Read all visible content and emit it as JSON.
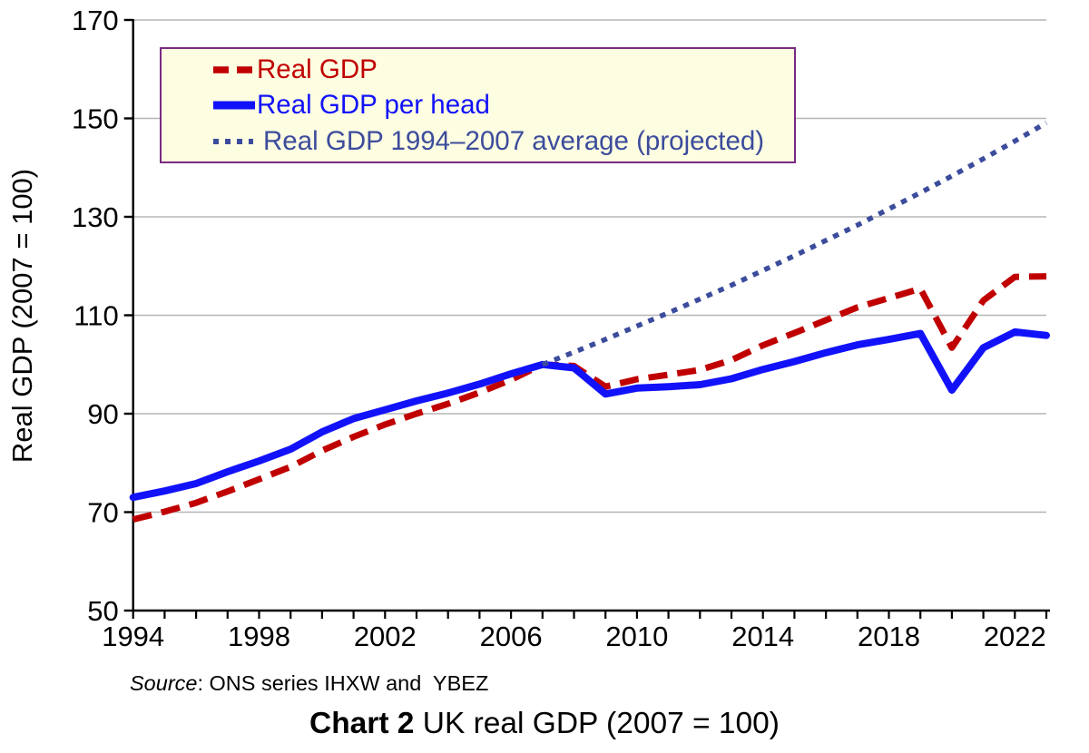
{
  "caption": {
    "bold": "Chart 2",
    "rest": " UK real GDP (2007 = 100)"
  },
  "source": {
    "italic": "Source",
    "rest": ": ONS series IHXW and  YBEZ"
  },
  "y_axis_title": "Real GDP (2007 = 100)",
  "colors": {
    "real_gdp": "#c00000",
    "real_gdp_per_head": "#1212fa",
    "projection": "#3c4c9c",
    "grid": "#b5b5b5",
    "axis": "#000000",
    "legend_bg": "#fdfde2",
    "legend_border": "#7a2a82"
  },
  "legend": [
    {
      "label": "Real GDP",
      "color": "#c00000",
      "style": "dashed"
    },
    {
      "label": "Real GDP per head",
      "color": "#1212fa",
      "style": "solid"
    },
    {
      "label": "Real GDP 1994–2007 average (projected)",
      "color": "#3c4c9c",
      "style": "dotted"
    }
  ],
  "chart_data": {
    "type": "line",
    "title": "Chart 2 UK real GDP (2007 = 100)",
    "xlabel": "",
    "ylabel": "Real GDP (2007 = 100)",
    "xlim": [
      1994,
      2023
    ],
    "ylim": [
      50,
      170
    ],
    "y_ticks": [
      50,
      70,
      90,
      110,
      130,
      150,
      170
    ],
    "x_ticks_every_year": true,
    "x_tick_labels": [
      1994,
      1998,
      2002,
      2006,
      2010,
      2014,
      2018,
      2022
    ],
    "grid": "horizontal",
    "legend_position": "top-left-inside",
    "x": [
      1994,
      1995,
      1996,
      1997,
      1998,
      1999,
      2000,
      2001,
      2002,
      2003,
      2004,
      2005,
      2006,
      2007,
      2008,
      2009,
      2010,
      2011,
      2012,
      2013,
      2014,
      2015,
      2016,
      2017,
      2018,
      2019,
      2020,
      2021,
      2022,
      2023
    ],
    "series": [
      {
        "name": "Real GDP",
        "color": "#c00000",
        "dash": "dashed",
        "values": [
          68.5,
          70.1,
          71.9,
          74.2,
          76.7,
          79.2,
          82.5,
          85.3,
          87.8,
          90.0,
          92.0,
          94.3,
          96.9,
          100.0,
          99.7,
          95.5,
          97.0,
          97.9,
          98.9,
          100.9,
          103.9,
          106.4,
          109.0,
          111.6,
          113.5,
          115.4,
          103.4,
          113.0,
          117.8,
          117.9
        ]
      },
      {
        "name": "Real GDP per head",
        "color": "#1212fa",
        "dash": "solid",
        "values": [
          73.0,
          74.3,
          75.8,
          78.2,
          80.4,
          82.8,
          86.3,
          89.0,
          90.8,
          92.6,
          94.2,
          96.0,
          98.1,
          100.0,
          99.3,
          94.0,
          95.2,
          95.5,
          95.9,
          97.1,
          99.0,
          100.6,
          102.4,
          104.0,
          105.1,
          106.3,
          94.8,
          103.4,
          106.6,
          105.9
        ]
      },
      {
        "name": "Real GDP 1994–2007 average (projected)",
        "color": "#3c4c9c",
        "dash": "dotted",
        "values": [
          null,
          null,
          null,
          null,
          null,
          null,
          null,
          null,
          null,
          null,
          null,
          null,
          null,
          100.0,
          102.5,
          105.1,
          107.8,
          110.5,
          113.3,
          116.1,
          119.1,
          122.1,
          125.2,
          128.3,
          131.6,
          134.9,
          138.3,
          141.8,
          145.4,
          149.1
        ]
      }
    ]
  }
}
